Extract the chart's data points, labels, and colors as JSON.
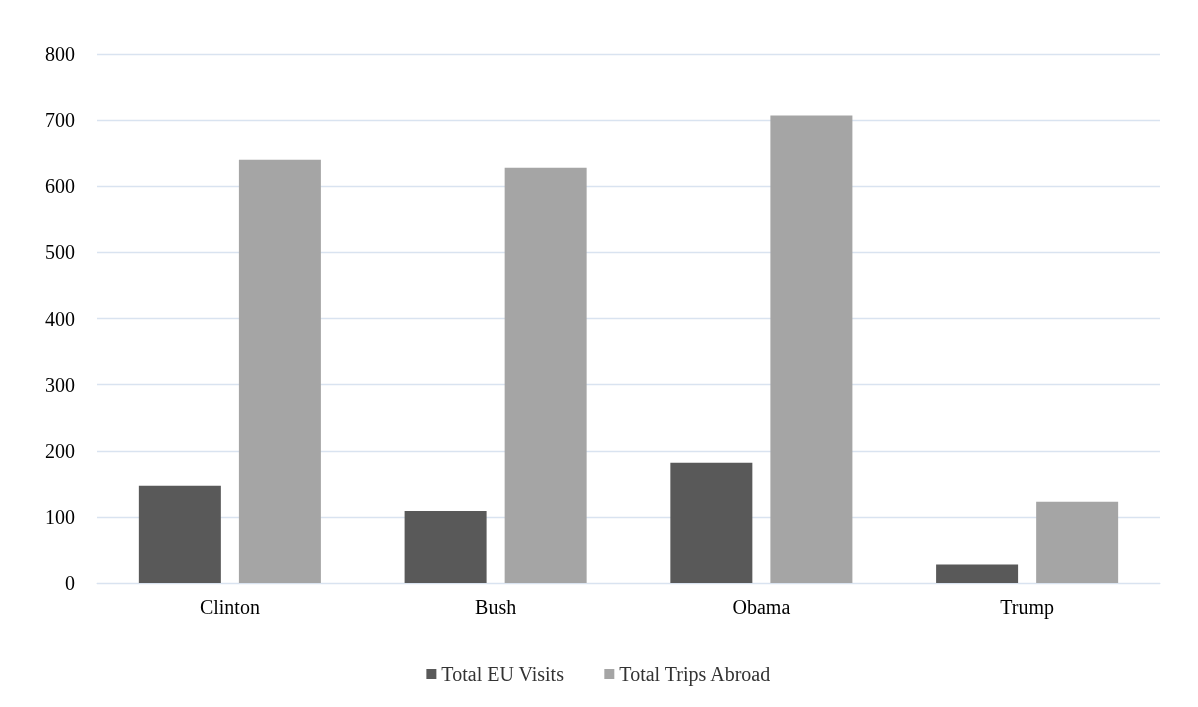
{
  "chart_data": {
    "type": "bar",
    "categories": [
      "Clinton",
      "Bush",
      "Obama",
      "Trump"
    ],
    "series": [
      {
        "name": "Total EU Visits",
        "color": "#595959",
        "values": [
          147,
          109,
          182,
          28
        ]
      },
      {
        "name": "Total Trips Abroad",
        "color": "#a5a5a5",
        "values": [
          640,
          628,
          707,
          123
        ]
      }
    ],
    "ylim": [
      0,
      800
    ],
    "yticks": [
      0,
      100,
      200,
      300,
      400,
      500,
      600,
      700,
      800
    ],
    "grid": "y",
    "legend": "bottom"
  }
}
